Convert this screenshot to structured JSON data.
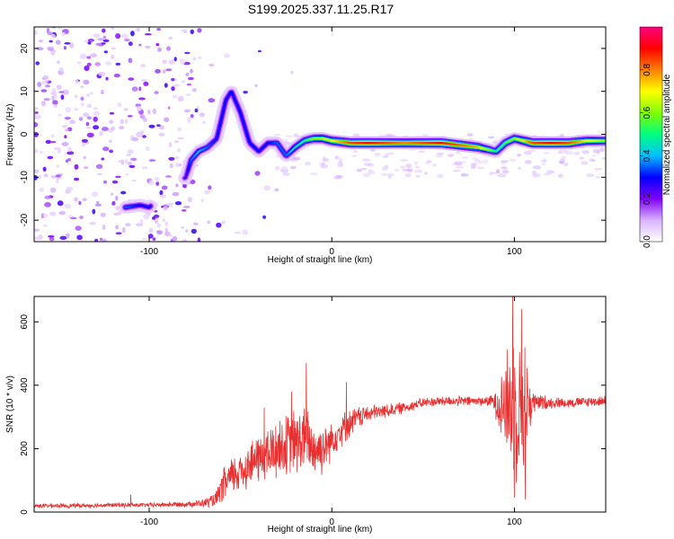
{
  "title": "S199.2025.337.11.25.R17",
  "chart_data": [
    {
      "type": "heatmap",
      "name": "spectrogram",
      "xlabel": "Height of straight line (km)",
      "ylabel": "Frequency (Hz)",
      "xlim": [
        -163,
        150
      ],
      "ylim": [
        -25,
        25
      ],
      "xticks": [
        -100,
        0,
        100
      ],
      "yticks": [
        -20,
        -10,
        0,
        10,
        20
      ],
      "colorbar": {
        "label": "Normalized spectral amplitude",
        "range": [
          0,
          1
        ],
        "ticks": [
          0.0,
          0.2,
          0.4,
          0.6,
          0.8
        ],
        "tick_labels": [
          "0.0",
          "0.2",
          "0.4",
          "0.6",
          "0.8"
        ],
        "colors": [
          "#ffffff",
          "#d9b3ff",
          "#8000ff",
          "#0000ff",
          "#00c0ff",
          "#00ff80",
          "#80ff00",
          "#ffff00",
          "#ff8000",
          "#ff0000",
          "#ff0080"
        ]
      },
      "ridge": {
        "x": [
          -113,
          -105,
          -100,
          -80,
          -77,
          -73,
          -68,
          -63,
          -58,
          -55,
          -50,
          -45,
          -40,
          -35,
          -30,
          -25,
          -20,
          -15,
          -10,
          -5,
          0,
          10,
          20,
          40,
          60,
          80,
          90,
          95,
          100,
          110,
          120,
          130,
          140,
          150
        ],
        "y": [
          -17,
          -16.5,
          -17,
          -10,
          -6,
          -4,
          -3,
          -1,
          8,
          10,
          5,
          -2,
          -4,
          -2,
          -2,
          -5,
          -3,
          -1.5,
          -1,
          -1,
          -1.5,
          -2,
          -2,
          -2,
          -2,
          -3,
          -4,
          -2,
          -1,
          -2,
          -2,
          -2,
          -1.5,
          -1.5
        ],
        "amplitude": [
          0.35,
          0.3,
          0.3,
          0.25,
          0.35,
          0.4,
          0.35,
          0.3,
          0.3,
          0.3,
          0.3,
          0.3,
          0.3,
          0.3,
          0.35,
          0.35,
          0.45,
          0.5,
          0.6,
          0.65,
          0.7,
          0.85,
          0.9,
          0.8,
          0.9,
          0.75,
          0.5,
          0.55,
          0.6,
          0.85,
          0.9,
          0.85,
          0.7,
          0.6
        ]
      }
    },
    {
      "type": "line",
      "name": "snr",
      "xlabel": "Height of straight line (km)",
      "ylabel": "SNR (10 * v/v)",
      "xlim": [
        -163,
        150
      ],
      "ylim": [
        0,
        680
      ],
      "xticks": [
        -100,
        0,
        100
      ],
      "yticks": [
        0,
        200,
        400,
        600
      ],
      "color": "#e83030",
      "envelope": {
        "x": [
          -163,
          -140,
          -120,
          -100,
          -80,
          -70,
          -63,
          -60,
          -55,
          -50,
          -45,
          -40,
          -35,
          -30,
          -25,
          -20,
          -15,
          -10,
          -5,
          0,
          5,
          10,
          15,
          20,
          30,
          40,
          50,
          60,
          70,
          80,
          88,
          90,
          95,
          98,
          100,
          102,
          105,
          108,
          110,
          120,
          130,
          140,
          150
        ],
        "mean": [
          20,
          20,
          22,
          22,
          25,
          28,
          40,
          80,
          110,
          130,
          150,
          170,
          180,
          200,
          210,
          220,
          230,
          200,
          200,
          230,
          260,
          280,
          300,
          310,
          320,
          330,
          345,
          350,
          350,
          350,
          350,
          345,
          340,
          330,
          340,
          320,
          330,
          340,
          345,
          345,
          345,
          348,
          350
        ],
        "amplitude": [
          8,
          8,
          8,
          8,
          10,
          15,
          30,
          60,
          70,
          80,
          80,
          90,
          100,
          110,
          110,
          120,
          120,
          110,
          90,
          70,
          60,
          50,
          40,
          30,
          25,
          20,
          18,
          18,
          18,
          18,
          20,
          60,
          180,
          250,
          300,
          220,
          250,
          150,
          40,
          20,
          18,
          18,
          18
        ]
      },
      "spikes": [
        {
          "x": -37,
          "y": 330
        },
        {
          "x": -22,
          "y": 380
        },
        {
          "x": -14,
          "y": 470
        },
        {
          "x": -4,
          "y": 190
        },
        {
          "x": 8,
          "y": 410
        },
        {
          "x": 99,
          "y": 680
        },
        {
          "x": 100,
          "y": 45
        },
        {
          "x": 104,
          "y": 640
        },
        {
          "x": 106,
          "y": 40
        },
        {
          "x": -110,
          "y": 55
        }
      ]
    }
  ]
}
